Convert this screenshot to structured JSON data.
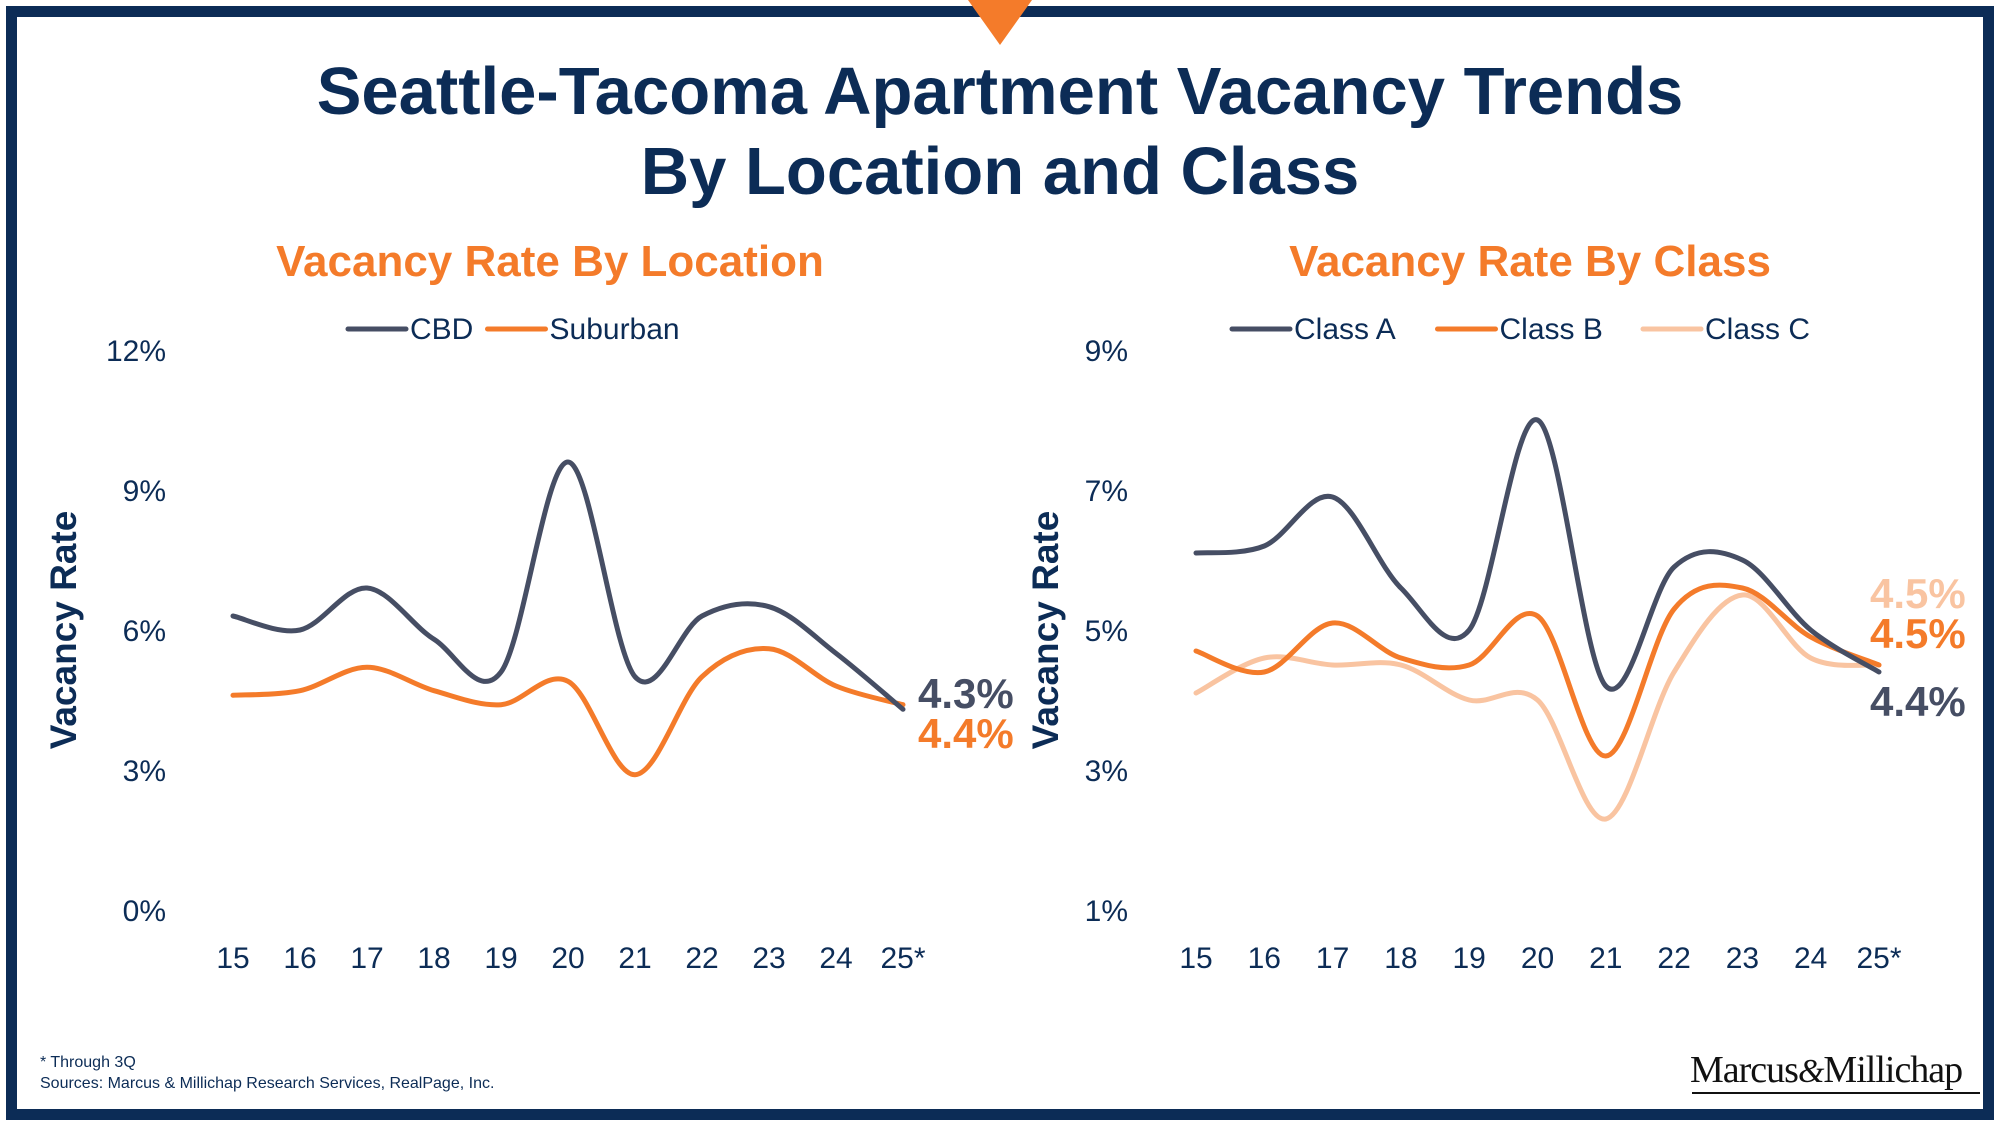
{
  "title_line1": "Seattle-Tacoma Apartment Vacancy Trends",
  "title_line2": "By Location and Class",
  "footnote": "* Through 3Q",
  "sources": "Sources: Marcus & Millichap Research Services, RealPage, Inc.",
  "logo": {
    "left": "Marcus",
    "amp": "&",
    "right": "Millichap"
  },
  "colors": {
    "navy": "#0c2c56",
    "orange": "#f47b2a",
    "slate": "#464e64",
    "peach": "#f9c4a1"
  },
  "chart_data": [
    {
      "type": "line",
      "title": "Vacancy Rate By Location",
      "ylabel": "Vacancy Rate",
      "xlabel": "",
      "categories": [
        "15",
        "16",
        "17",
        "18",
        "19",
        "20",
        "21",
        "22",
        "23",
        "24",
        "25*"
      ],
      "yticks": [
        "0%",
        "3%",
        "6%",
        "9%",
        "12%"
      ],
      "ylim": [
        0,
        12
      ],
      "grid": false,
      "legend": "top",
      "series": [
        {
          "name": "CBD",
          "color": "#464e64",
          "values": [
            6.3,
            6.0,
            6.9,
            5.8,
            5.1,
            9.6,
            5.0,
            6.3,
            6.5,
            5.5,
            4.3
          ],
          "end_label": "4.3%"
        },
        {
          "name": "Suburban",
          "color": "#f47b2a",
          "values": [
            4.6,
            4.7,
            5.2,
            4.7,
            4.4,
            4.9,
            2.9,
            5.0,
            5.6,
            4.8,
            4.4
          ],
          "end_label": "4.4%"
        }
      ]
    },
    {
      "type": "line",
      "title": "Vacancy Rate By Class",
      "ylabel": "Vacancy Rate",
      "xlabel": "",
      "categories": [
        "15",
        "16",
        "17",
        "18",
        "19",
        "20",
        "21",
        "22",
        "23",
        "24",
        "25*"
      ],
      "yticks": [
        "1%",
        "3%",
        "5%",
        "7%",
        "9%"
      ],
      "ylim": [
        1,
        9
      ],
      "grid": false,
      "legend": "top",
      "series": [
        {
          "name": "Class A",
          "color": "#464e64",
          "values": [
            6.1,
            6.2,
            6.9,
            5.6,
            5.0,
            8.0,
            4.2,
            5.9,
            6.0,
            5.0,
            4.4
          ],
          "end_label": "4.4%"
        },
        {
          "name": "Class B",
          "color": "#f47b2a",
          "values": [
            4.7,
            4.4,
            5.1,
            4.6,
            4.5,
            5.2,
            3.2,
            5.3,
            5.6,
            4.9,
            4.5
          ],
          "end_label": "4.5%"
        },
        {
          "name": "Class C",
          "color": "#f9c4a1",
          "values": [
            4.1,
            4.6,
            4.5,
            4.5,
            4.0,
            4.0,
            2.3,
            4.4,
            5.5,
            4.6,
            4.5
          ],
          "end_label": "4.5%"
        }
      ]
    }
  ]
}
